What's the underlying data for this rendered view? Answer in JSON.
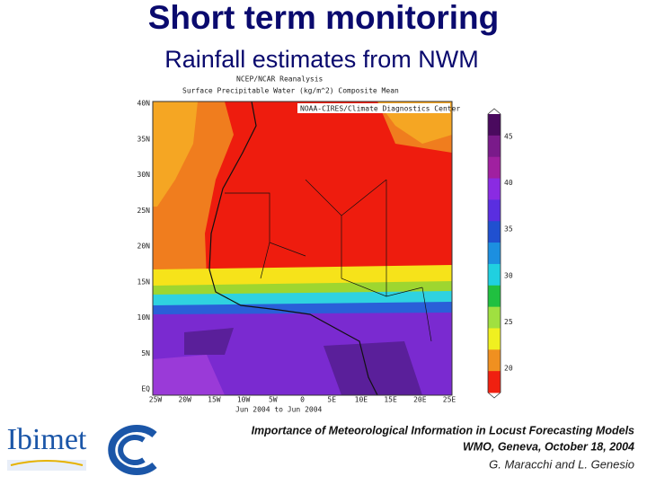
{
  "header": {
    "title": "Short term monitoring",
    "subtitle": "Rainfall estimates from NWM"
  },
  "map": {
    "source": "NCEP/NCAR Reanalysis",
    "variable": "Surface Precipitable Water (kg/m^2) Composite Mean",
    "credit": "NOAA-CIRES/Climate Diagnostics Center",
    "period": "Jun 2004 to Jun 2004",
    "lat_labels": [
      "40N",
      "35N",
      "30N",
      "25N",
      "20N",
      "15N",
      "10N",
      "5N",
      "EQ"
    ],
    "lon_labels": [
      "25W",
      "20W",
      "15W",
      "10W",
      "5W",
      "0",
      "5E",
      "10E",
      "15E",
      "20E",
      "25E"
    ],
    "colorbar_labels": [
      "45",
      "40",
      "35",
      "30",
      "25",
      "20"
    ]
  },
  "footer": {
    "line1": "Importance of Meteorological Information in Locust Forecasting Models",
    "line2": "WMO, Geneva, October 18, 2004",
    "authors": "G. Maracchi and L. Genesio",
    "logo_text": "Ibimet"
  }
}
